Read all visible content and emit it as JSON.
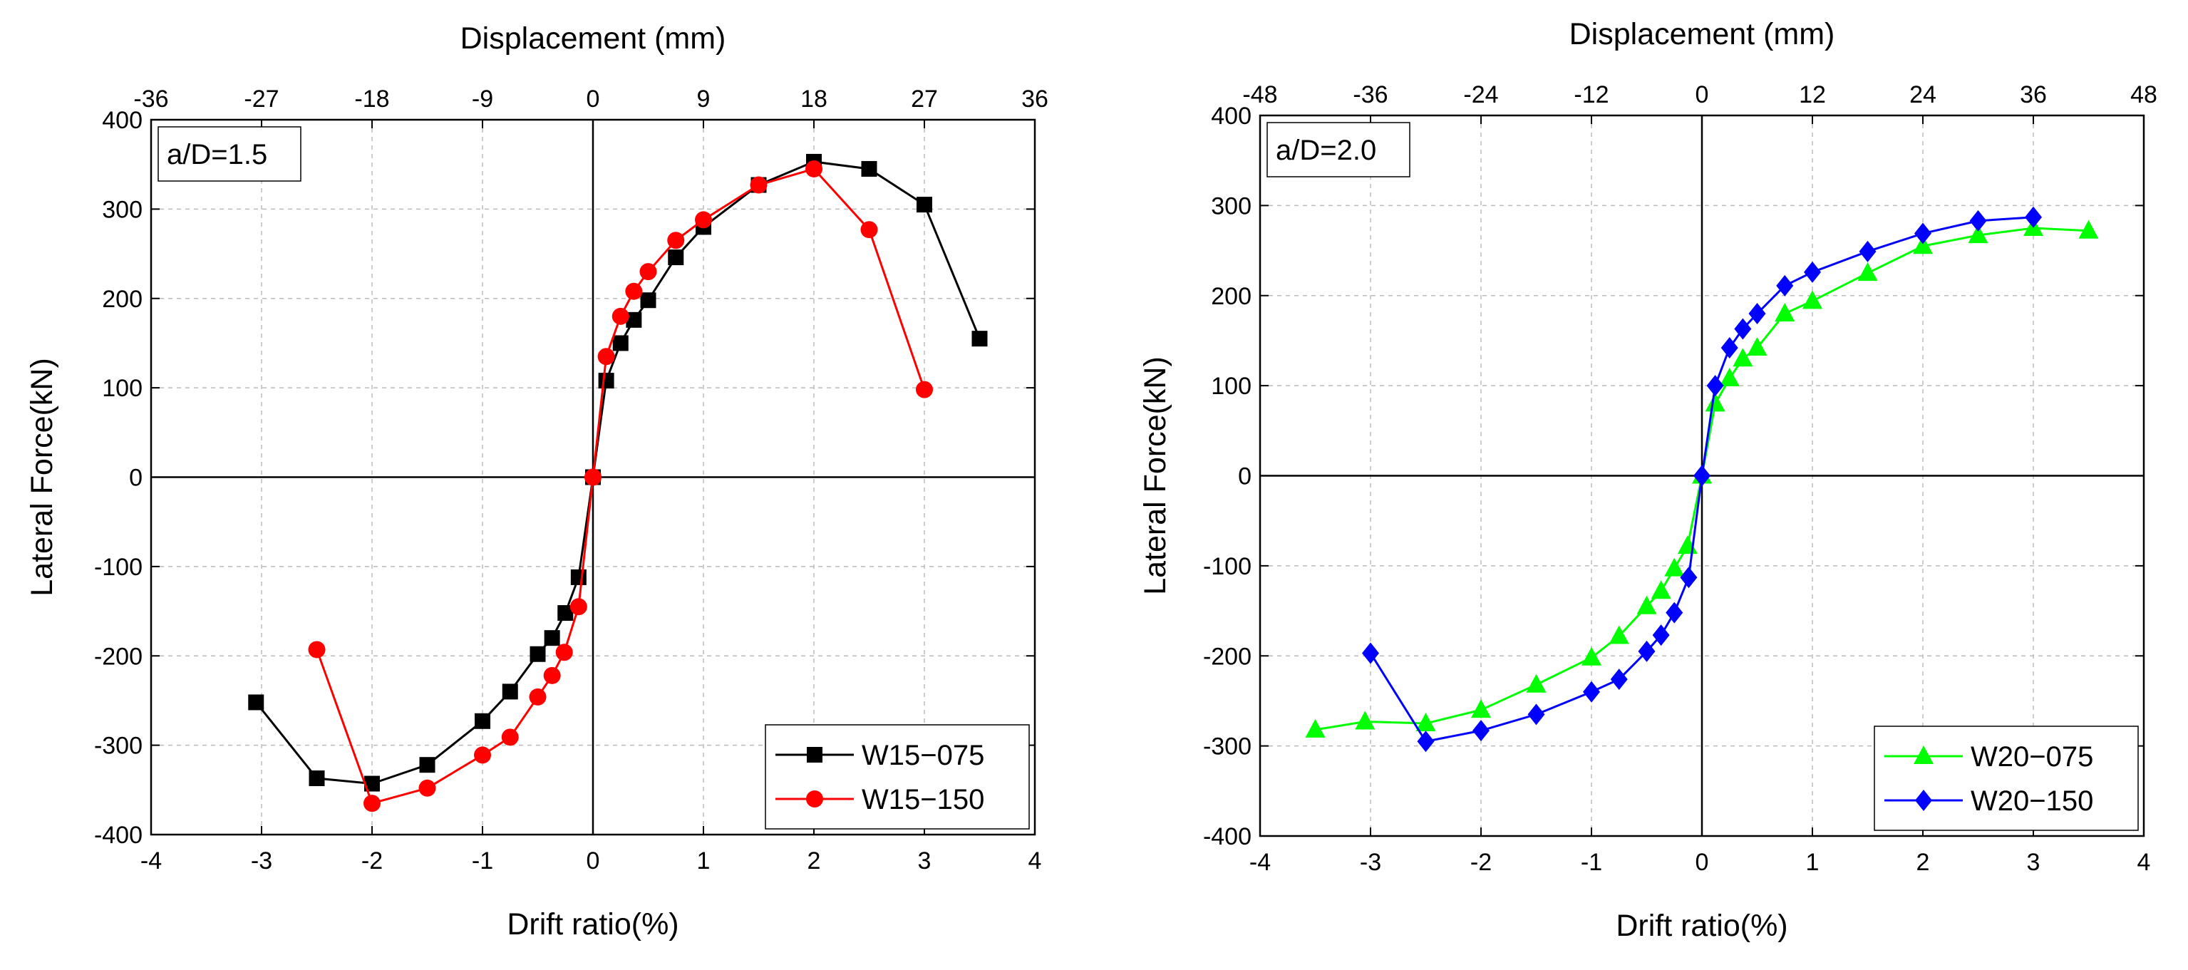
{
  "chart_data": [
    {
      "type": "line",
      "panel_label": "a/D=1.5",
      "xlabel": "Drift ratio(%)",
      "ylabel": "Lateral Force(kN)",
      "x2label": "Displacement (mm)",
      "xlim": [
        -4,
        4
      ],
      "ylim": [
        -400,
        400
      ],
      "x2lim": [
        -36,
        36
      ],
      "xticks": [
        -4,
        -3,
        -2,
        -1,
        0,
        1,
        2,
        3,
        4
      ],
      "yticks": [
        -400,
        -300,
        -200,
        -100,
        0,
        100,
        200,
        300,
        400
      ],
      "x2ticks": [
        -36,
        -27,
        -18,
        -9,
        0,
        9,
        18,
        27,
        36
      ],
      "grid": true,
      "legend_position": "bottom-right",
      "series": [
        {
          "name": "W15−075",
          "color": "#000000",
          "marker": "square",
          "x": [
            -3.05,
            -2.5,
            -2.0,
            -1.5,
            -1.0,
            -0.75,
            -0.5,
            -0.37,
            -0.25,
            -0.13,
            0,
            0.12,
            0.25,
            0.37,
            0.5,
            0.75,
            1.0,
            1.5,
            2.0,
            2.5,
            3.0,
            3.5
          ],
          "y": [
            -252,
            -337,
            -343,
            -322,
            -273,
            -240,
            -198,
            -180,
            -152,
            -112,
            0,
            108,
            150,
            176,
            198,
            246,
            280,
            327,
            353,
            345,
            305,
            155
          ]
        },
        {
          "name": "W15−150",
          "color": "#ff0000",
          "marker": "circle",
          "x": [
            -2.5,
            -2.0,
            -1.5,
            -1.0,
            -0.75,
            -0.5,
            -0.37,
            -0.26,
            -0.13,
            0,
            0.12,
            0.25,
            0.37,
            0.5,
            0.75,
            1.0,
            1.5,
            2.0,
            2.5,
            3.0
          ],
          "y": [
            -193,
            -365,
            -348,
            -311,
            -291,
            -246,
            -222,
            -196,
            -145,
            0,
            135,
            180,
            208,
            230,
            265,
            288,
            327,
            345,
            277,
            98
          ]
        }
      ]
    },
    {
      "type": "line",
      "panel_label": "a/D=2.0",
      "xlabel": "Drift ratio(%)",
      "ylabel": "Lateral Force(kN)",
      "x2label": "Displacement (mm)",
      "xlim": [
        -4,
        4
      ],
      "ylim": [
        -400,
        400
      ],
      "x2lim": [
        -48,
        48
      ],
      "xticks": [
        -4,
        -3,
        -2,
        -1,
        0,
        1,
        2,
        3,
        4
      ],
      "yticks": [
        -400,
        -300,
        -200,
        -100,
        0,
        100,
        200,
        300,
        400
      ],
      "x2ticks": [
        -48,
        -36,
        -24,
        -12,
        0,
        12,
        24,
        36,
        48
      ],
      "grid": true,
      "legend_position": "bottom-right",
      "series": [
        {
          "name": "W20−075",
          "color": "#00ff00",
          "marker": "triangle",
          "x": [
            -3.5,
            -3.05,
            -2.5,
            -2.0,
            -1.5,
            -1.0,
            -0.75,
            -0.5,
            -0.37,
            -0.25,
            -0.13,
            0,
            0.12,
            0.25,
            0.37,
            0.5,
            0.75,
            1.0,
            1.5,
            2.0,
            2.5,
            3.0,
            3.5
          ],
          "y": [
            -282,
            -273,
            -275,
            -260,
            -232,
            -202,
            -178,
            -145,
            -128,
            -103,
            -78,
            0,
            80,
            108,
            130,
            142,
            180,
            194,
            225,
            255,
            267,
            275,
            272
          ]
        },
        {
          "name": "W20−150",
          "color": "#0000ff",
          "marker": "diamond",
          "x": [
            -3.0,
            -2.5,
            -2.0,
            -1.5,
            -1.0,
            -0.75,
            -0.5,
            -0.37,
            -0.25,
            -0.12,
            0,
            0.12,
            0.25,
            0.37,
            0.5,
            0.75,
            1.0,
            1.5,
            2.0,
            2.5,
            3.0
          ],
          "y": [
            -197,
            -295,
            -283,
            -265,
            -240,
            -226,
            -195,
            -177,
            -152,
            -113,
            0,
            100,
            142,
            163,
            180,
            211,
            226,
            249,
            269,
            283,
            287
          ]
        }
      ]
    }
  ]
}
